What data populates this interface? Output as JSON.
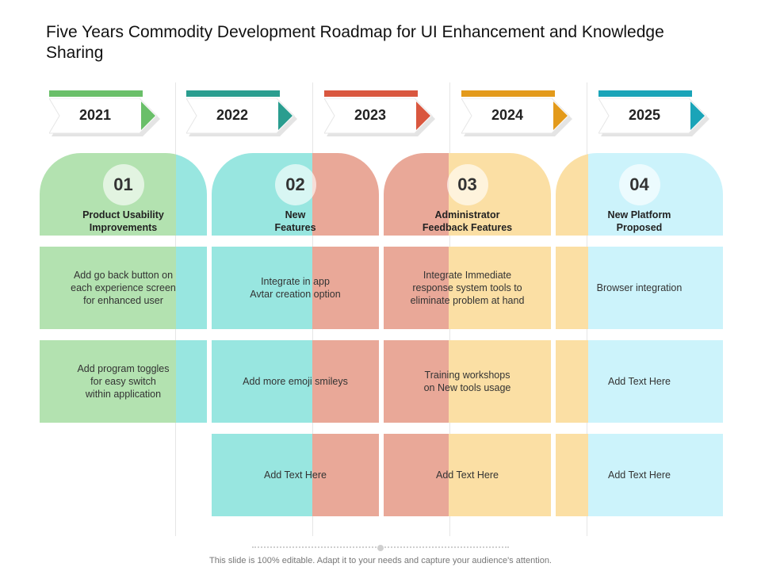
{
  "title": "Five Years Commodity Development Roadmap for UI Enhancement and Knowledge Sharing",
  "years": [
    {
      "label": "2021",
      "color": "#6abf69"
    },
    {
      "label": "2022",
      "color": "#2a9d8f"
    },
    {
      "label": "2023",
      "color": "#d9573f"
    },
    {
      "label": "2024",
      "color": "#e39a1b"
    },
    {
      "label": "2025",
      "color": "#1aa4b8"
    }
  ],
  "columns": [
    {
      "number": "01",
      "heading": "Product Usability\nImprovements",
      "cells": [
        "Add go back button on\neach experience screen\nfor enhanced user",
        "Add program toggles\nfor  easy switch\nwithin application"
      ]
    },
    {
      "number": "02",
      "heading": "New\nFeatures",
      "cells": [
        "Integrate in app\nAvtar creation option",
        "Add more emoji smileys",
        "Add Text Here"
      ]
    },
    {
      "number": "03",
      "heading": "Administrator\nFeedback Features",
      "cells": [
        "Integrate Immediate\nresponse system tools to\neliminate problem at hand",
        "Training workshops\non New  tools usage",
        "Add Text Here"
      ]
    },
    {
      "number": "04",
      "heading": "New Platform\nProposed",
      "cells": [
        "Browser integration",
        "Add Text Here",
        "Add Text Here"
      ]
    }
  ],
  "footer": "This slide is 100% editable. Adapt it to your needs and capture your audience's attention.",
  "palette": {
    "green": "#b3e2b0",
    "teal": "#98e6e0",
    "salmon": "#e9a898",
    "peach": "#fbdfa4",
    "sky": "#ccf3fb"
  }
}
